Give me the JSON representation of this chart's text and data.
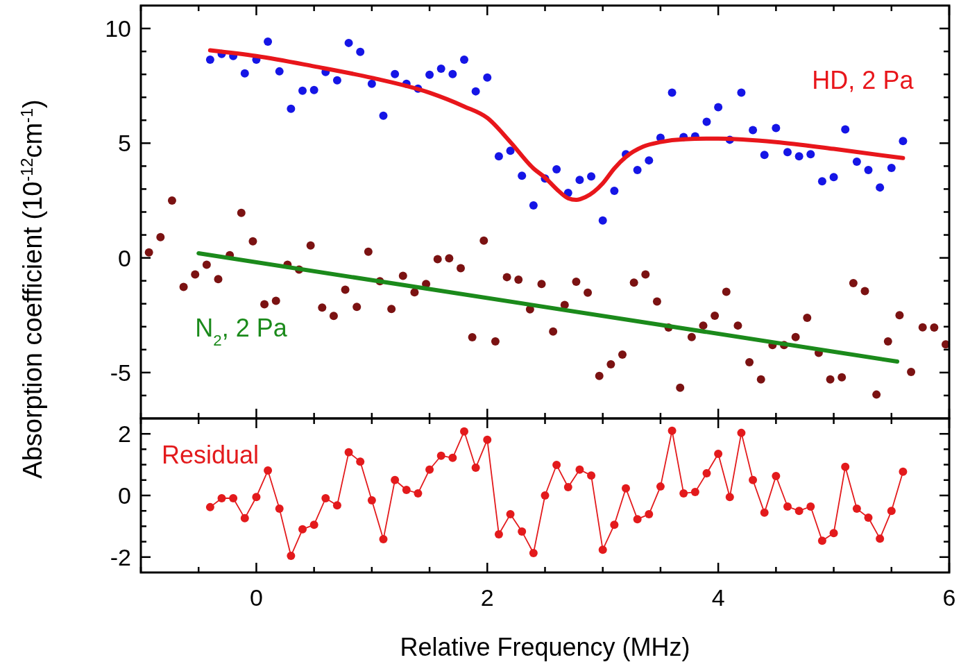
{
  "chart_data": [
    {
      "type": "scatter",
      "ylabel": "Absorption coefficient (10$^{-12}$cm$^{-1}$)",
      "xlim": [
        -1,
        6
      ],
      "ylim": [
        -7,
        11
      ],
      "tick_labels": "y",
      "grid": false,
      "xticks": [
        {
          "value": -1,
          "label": null
        },
        {
          "value": -0.5,
          "label": null
        },
        0,
        {
          "value": 0.5,
          "label": null
        },
        {
          "value": 1,
          "label": null
        },
        {
          "value": 1.5,
          "label": null
        },
        2,
        {
          "value": 2.5,
          "label": null
        },
        {
          "value": 3,
          "label": null
        },
        {
          "value": 3.5,
          "label": null
        },
        4,
        {
          "value": 4.5,
          "label": null
        },
        {
          "value": 5,
          "label": null
        },
        {
          "value": 5.5,
          "label": null
        },
        6
      ],
      "yticks": [
        {
          "value": -6,
          "label": null
        },
        -5,
        {
          "value": -4,
          "label": null
        },
        {
          "value": -3,
          "label": null
        },
        {
          "value": -2,
          "label": null
        },
        {
          "value": -1,
          "label": null
        },
        0,
        {
          "value": 1,
          "label": null
        },
        {
          "value": 2,
          "label": null
        },
        {
          "value": 3,
          "label": null
        },
        {
          "value": 4,
          "label": null
        },
        5,
        {
          "value": 6,
          "label": null
        },
        {
          "value": 7,
          "label": null
        },
        {
          "value": 8,
          "label": null
        },
        {
          "value": 9,
          "label": null
        },
        10
      ],
      "series": [
        {
          "color": "#1515e6",
          "marker": "circle",
          "x": [
            -0.4,
            -0.3,
            -0.2,
            -0.1,
            0,
            0.1,
            0.2,
            0.3,
            0.4,
            0.5,
            0.6,
            0.7,
            0.8,
            0.9,
            1.0,
            1.1,
            1.2,
            1.3,
            1.4,
            1.5,
            1.6,
            1.7,
            1.8,
            1.9,
            2.0,
            2.1,
            2.2,
            2.3,
            2.4,
            2.5,
            2.6,
            2.7,
            2.8,
            2.9,
            3.0,
            3.1,
            3.2,
            3.3,
            3.4,
            3.5,
            3.6,
            3.7,
            3.8,
            3.9,
            4.0,
            4.1,
            4.2,
            4.3,
            4.4,
            4.5,
            4.6,
            4.7,
            4.8,
            4.9,
            5.0,
            5.1,
            5.2,
            5.3,
            5.4,
            5.5,
            5.6
          ],
          "values": [
            8.64,
            8.89,
            8.8,
            8.04,
            8.64,
            9.43,
            8.13,
            6.5,
            7.29,
            7.32,
            8.1,
            7.74,
            9.37,
            8.98,
            7.59,
            6.2,
            8.01,
            7.59,
            7.38,
            7.98,
            8.25,
            8.01,
            8.64,
            7.26,
            7.86,
            4.43,
            4.67,
            3.58,
            2.29,
            3.46,
            3.86,
            2.83,
            3.4,
            3.55,
            1.63,
            2.92,
            4.52,
            3.83,
            4.25,
            5.24,
            7.2,
            5.27,
            5.3,
            5.93,
            6.57,
            5.15,
            7.2,
            5.57,
            4.49,
            5.66,
            4.61,
            4.43,
            4.52,
            3.34,
            3.52,
            5.6,
            4.19,
            3.83,
            3.07,
            3.92,
            5.09
          ]
        },
        {
          "type": "line",
          "name": "HD, 2 Pa",
          "color": "#e8161b",
          "marker": "none",
          "x": [
            -0.4,
            0,
            0.5,
            1.0,
            1.5,
            1.8,
            2.0,
            2.2,
            2.4,
            2.5,
            2.6,
            2.7,
            2.77,
            2.85,
            3.0,
            3.1,
            3.2,
            3.35,
            3.5,
            3.7,
            4.0,
            4.5,
            5.0,
            5.6
          ],
          "values": [
            9.05,
            8.8,
            8.35,
            7.85,
            7.2,
            6.6,
            6.1,
            5.05,
            3.9,
            3.5,
            3.0,
            2.6,
            2.53,
            2.65,
            3.25,
            3.9,
            4.4,
            4.85,
            5.05,
            5.17,
            5.2,
            5.05,
            4.75,
            4.35
          ]
        },
        {
          "color": "#7b1212",
          "marker": "circle",
          "x": [
            -0.93,
            -0.83,
            -0.73,
            -0.63,
            -0.53,
            -0.43,
            -0.33,
            -0.23,
            -0.13,
            -0.03,
            0.07,
            0.17,
            0.27,
            0.37,
            0.47,
            0.57,
            0.67,
            0.77,
            0.87,
            0.97,
            1.07,
            1.17,
            1.27,
            1.37,
            1.47,
            1.57,
            1.67,
            1.77,
            1.87,
            1.97,
            2.07,
            2.17,
            2.27,
            2.37,
            2.47,
            2.57,
            2.67,
            2.77,
            2.87,
            2.97,
            3.07,
            3.17,
            3.27,
            3.37,
            3.47,
            3.57,
            3.67,
            3.77,
            3.87,
            3.97,
            4.07,
            4.17,
            4.27,
            4.37,
            4.47,
            4.57,
            4.67,
            4.77,
            4.87,
            4.97,
            5.07,
            5.17,
            5.27,
            5.37,
            5.47,
            5.57,
            5.67,
            5.77,
            5.87,
            5.97
          ],
          "values": [
            0.24,
            0.9,
            2.5,
            -1.27,
            -0.72,
            -0.3,
            -0.93,
            0.12,
            1.96,
            0.72,
            -2.02,
            -1.87,
            -0.3,
            -0.51,
            0.54,
            -2.17,
            -2.53,
            -1.39,
            -2.14,
            0.27,
            -1.02,
            -2.23,
            -0.78,
            -1.5,
            -1.14,
            -0.06,
            -0.02,
            -0.45,
            -3.46,
            0.75,
            -3.64,
            -0.84,
            -0.95,
            -2.24,
            -1.14,
            -3.21,
            -2.05,
            -1.04,
            -1.52,
            -5.15,
            -4.64,
            -4.22,
            -1.08,
            -0.72,
            -1.9,
            -3.04,
            -5.66,
            -3.45,
            -2.95,
            -2.52,
            -1.48,
            -2.95,
            -4.55,
            -5.3,
            -3.8,
            -3.8,
            -3.45,
            -2.61,
            -4.14,
            -5.3,
            -5.21,
            -1.1,
            -1.45,
            -5.96,
            -3.64,
            -2.5,
            -4.97,
            -3.03,
            -3.04,
            -3.77
          ]
        },
        {
          "type": "line",
          "name": "N$_{2}$, 2 Pa",
          "color": "#1b8a1b",
          "marker": "none",
          "x": [
            -0.5,
            5.55
          ],
          "values": [
            0.2,
            -4.52
          ]
        }
      ]
    },
    {
      "type": "line",
      "xlabel": "Relative Frequency (MHz)",
      "xlim": [
        -1,
        6
      ],
      "ylim": [
        -2.5,
        2.5
      ],
      "grid": false,
      "xticks": [
        {
          "value": -1,
          "label": null
        },
        {
          "value": -0.5,
          "label": null
        },
        0,
        {
          "value": 0.5,
          "label": null
        },
        {
          "value": 1,
          "label": null
        },
        {
          "value": 1.5,
          "label": null
        },
        2,
        {
          "value": 2.5,
          "label": null
        },
        {
          "value": 3,
          "label": null
        },
        {
          "value": 3.5,
          "label": null
        },
        4,
        {
          "value": 4.5,
          "label": null
        },
        {
          "value": 5,
          "label": null
        },
        {
          "value": 5.5,
          "label": null
        },
        6
      ],
      "yticks": [
        -2,
        {
          "value": -1.5,
          "label": null
        },
        {
          "value": -1,
          "label": null
        },
        {
          "value": -0.5,
          "label": null
        },
        0,
        {
          "value": 0.5,
          "label": null
        },
        {
          "value": 1,
          "label": null
        },
        {
          "value": 1.5,
          "label": null
        },
        2
      ],
      "series": [
        {
          "name": "Residual",
          "color": "#e31a1c",
          "marker": "circle",
          "x": [
            -0.4,
            -0.3,
            -0.2,
            -0.1,
            0,
            0.1,
            0.2,
            0.3,
            0.4,
            0.5,
            0.6,
            0.7,
            0.8,
            0.9,
            1.0,
            1.1,
            1.2,
            1.3,
            1.4,
            1.5,
            1.6,
            1.7,
            1.8,
            1.9,
            2.0,
            2.1,
            2.2,
            2.3,
            2.4,
            2.5,
            2.6,
            2.7,
            2.8,
            2.9,
            3.0,
            3.1,
            3.2,
            3.3,
            3.4,
            3.5,
            3.6,
            3.7,
            3.8,
            3.9,
            4.0,
            4.1,
            4.2,
            4.3,
            4.4,
            4.5,
            4.6,
            4.7,
            4.8,
            4.9,
            5.0,
            5.1,
            5.2,
            5.3,
            5.4,
            5.5,
            5.6
          ],
          "values": [
            -0.38,
            -0.09,
            -0.09,
            -0.74,
            -0.05,
            0.81,
            -0.43,
            -1.96,
            -1.1,
            -0.95,
            -0.09,
            -0.32,
            1.4,
            1.1,
            -0.16,
            -1.42,
            0.5,
            0.18,
            0.07,
            0.84,
            1.29,
            1.22,
            2.08,
            0.9,
            1.81,
            -1.26,
            -0.61,
            -1.17,
            -1.87,
            0,
            0.99,
            0.27,
            0.84,
            0.65,
            -1.76,
            -0.95,
            0.23,
            -0.77,
            -0.61,
            0.29,
            2.1,
            0.07,
            0.11,
            0.72,
            1.35,
            -0.05,
            2.03,
            0.5,
            -0.56,
            0.63,
            -0.36,
            -0.5,
            -0.36,
            -1.47,
            -1.22,
            0.93,
            -0.43,
            -0.72,
            -1.4,
            -0.5,
            0.77
          ]
        }
      ]
    }
  ]
}
